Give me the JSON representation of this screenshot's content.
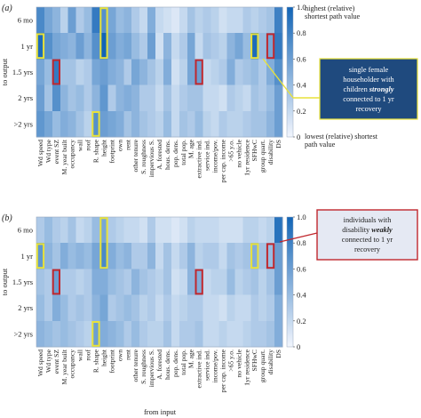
{
  "chart_data": [
    {
      "type": "heatmap",
      "panel_label": "(a)",
      "ylabel": "to output",
      "rows": [
        "6 mo",
        "1 yr",
        "1.5 yrs",
        "2 yrs",
        ">2 yrs"
      ],
      "columns": [
        "Wd speed",
        "Wd type",
        "event SZ",
        "M. year built",
        "occupancy",
        "wall",
        "roof",
        "R. shape",
        "height",
        "footprint",
        "own",
        "rent",
        "other tenure",
        "S. roughness",
        "impervious S.",
        "A. forested",
        "hous. dens.",
        "pop. dens.",
        "total pop.",
        "M. age",
        "extractive ind.",
        "service ind.",
        "income/pov.",
        "per cap. income",
        ">65 y.o.",
        "no vehicle",
        "1yr residence",
        "SFHwC",
        "group quart.",
        "disability",
        "DS"
      ],
      "values": [
        [
          0.75,
          0.55,
          0.45,
          0.25,
          0.6,
          0.3,
          0.4,
          0.85,
          0.7,
          0.55,
          0.4,
          0.45,
          0.3,
          0.2,
          0.5,
          0.2,
          0.15,
          0.1,
          0.2,
          0.35,
          0.25,
          0.3,
          0.25,
          0.15,
          0.2,
          0.2,
          0.3,
          0.25,
          0.3,
          0.35,
          0.8
        ],
        [
          0.95,
          0.7,
          0.55,
          0.5,
          0.45,
          0.6,
          0.45,
          0.7,
          1.0,
          0.6,
          0.5,
          0.55,
          0.4,
          0.3,
          0.6,
          0.15,
          0.45,
          0.2,
          0.3,
          0.55,
          0.2,
          0.35,
          0.3,
          0.25,
          0.45,
          0.55,
          0.4,
          0.95,
          0.4,
          0.55,
          0.85
        ],
        [
          0.55,
          0.4,
          0.85,
          0.35,
          0.35,
          0.25,
          0.3,
          0.55,
          0.6,
          0.5,
          0.45,
          0.3,
          0.55,
          0.45,
          0.35,
          0.25,
          0.5,
          0.15,
          0.25,
          0.55,
          0.6,
          0.2,
          0.25,
          0.3,
          0.5,
          0.3,
          0.35,
          0.4,
          0.3,
          0.5,
          0.7
        ],
        [
          0.6,
          0.35,
          0.7,
          0.45,
          0.35,
          0.4,
          0.3,
          0.45,
          0.65,
          0.3,
          0.45,
          0.5,
          0.45,
          0.3,
          0.3,
          0.2,
          0.35,
          0.2,
          0.3,
          0.35,
          0.35,
          0.2,
          0.2,
          0.15,
          0.3,
          0.25,
          0.2,
          0.35,
          0.3,
          0.4,
          0.6
        ],
        [
          0.65,
          0.55,
          0.4,
          0.5,
          0.45,
          0.35,
          0.25,
          0.7,
          0.6,
          0.55,
          0.5,
          0.35,
          0.45,
          0.35,
          0.3,
          0.25,
          0.4,
          0.2,
          0.35,
          0.3,
          0.4,
          0.25,
          0.2,
          0.3,
          0.25,
          0.25,
          0.3,
          0.35,
          0.35,
          0.45,
          0.6
        ]
      ],
      "highlight_boxes": [
        {
          "color": "#e8e23a",
          "row_start": 0,
          "row_end": 1,
          "col_start": 8,
          "col_end": 8
        },
        {
          "color": "#e8e23a",
          "row_start": 1,
          "row_end": 1,
          "col_start": 0,
          "col_end": 0
        },
        {
          "color": "#e8e23a",
          "row_start": 1,
          "row_end": 1,
          "col_start": 27,
          "col_end": 27
        },
        {
          "color": "#e8e23a",
          "row_start": 4,
          "row_end": 4,
          "col_start": 7,
          "col_end": 7
        },
        {
          "color": "#c0272d",
          "row_start": 1,
          "row_end": 1,
          "col_start": 29,
          "col_end": 29
        },
        {
          "color": "#c0272d",
          "row_start": 2,
          "row_end": 2,
          "col_start": 2,
          "col_end": 2
        },
        {
          "color": "#c0272d",
          "row_start": 2,
          "row_end": 2,
          "col_start": 20,
          "col_end": 20
        }
      ],
      "colorbar": {
        "range": [
          0,
          1.0
        ],
        "ticks": [
          "0",
          "0.2",
          "0.4",
          "0.6",
          "0.8",
          "1.0"
        ],
        "top_label": "highest (relative) shortest path value",
        "bottom_label": "lowest (relative) shortest path value"
      },
      "callout": {
        "text_before": "single female householder with children",
        "emphasis": "strongly",
        "text_after": "connected to 1 yr recovery"
      }
    },
    {
      "type": "heatmap",
      "panel_label": "(b)",
      "ylabel": "to output",
      "xlabel": "from input",
      "rows": [
        "6 mo",
        "1 yr",
        "1.5 yrs",
        "2 yrs",
        ">2 yrs"
      ],
      "columns": [
        "Wd speed",
        "Wd type",
        "event SZ",
        "M. year built",
        "occupancy",
        "wall",
        "roof",
        "R. shape",
        "height",
        "footprint",
        "own",
        "rent",
        "other tenure",
        "S. roughness",
        "impervious S.",
        "A. forested",
        "hous. dens.",
        "pop. dens.",
        "total pop.",
        "M. age",
        "extractive ind.",
        "service ind.",
        "income/pov.",
        "per cap. income",
        ">65 y.o.",
        "no vehicle",
        "1yr residence",
        "SFHwC",
        "group quart.",
        "disability",
        "DS"
      ],
      "values": [
        [
          0.3,
          0.4,
          0.3,
          0.25,
          0.35,
          0.2,
          0.25,
          0.4,
          0.55,
          0.3,
          0.25,
          0.2,
          0.2,
          0.15,
          0.3,
          0.15,
          0.15,
          0.1,
          0.15,
          0.25,
          0.2,
          0.2,
          0.2,
          0.15,
          0.15,
          0.15,
          0.25,
          0.25,
          0.2,
          0.25,
          0.9
        ],
        [
          0.65,
          0.45,
          0.35,
          0.5,
          0.4,
          0.45,
          0.4,
          0.55,
          0.75,
          0.5,
          0.4,
          0.45,
          0.3,
          0.3,
          0.45,
          0.2,
          0.35,
          0.2,
          0.3,
          0.45,
          0.25,
          0.3,
          0.3,
          0.2,
          0.35,
          0.3,
          0.35,
          0.5,
          0.35,
          0.4,
          0.6
        ],
        [
          0.35,
          0.3,
          0.6,
          0.3,
          0.3,
          0.25,
          0.3,
          0.5,
          0.5,
          0.4,
          0.35,
          0.3,
          0.45,
          0.35,
          0.3,
          0.25,
          0.35,
          0.15,
          0.2,
          0.45,
          0.5,
          0.2,
          0.25,
          0.25,
          0.4,
          0.25,
          0.3,
          0.35,
          0.25,
          0.35,
          0.6
        ],
        [
          0.4,
          0.3,
          0.5,
          0.4,
          0.3,
          0.35,
          0.3,
          0.45,
          0.55,
          0.3,
          0.35,
          0.4,
          0.35,
          0.25,
          0.3,
          0.2,
          0.3,
          0.2,
          0.25,
          0.3,
          0.3,
          0.2,
          0.2,
          0.15,
          0.25,
          0.2,
          0.2,
          0.3,
          0.25,
          0.3,
          0.5
        ],
        [
          0.45,
          0.4,
          0.35,
          0.4,
          0.35,
          0.3,
          0.25,
          0.6,
          0.5,
          0.45,
          0.4,
          0.3,
          0.4,
          0.3,
          0.25,
          0.25,
          0.35,
          0.2,
          0.3,
          0.3,
          0.35,
          0.2,
          0.2,
          0.25,
          0.2,
          0.2,
          0.25,
          0.3,
          0.3,
          0.35,
          0.5
        ]
      ],
      "highlight_boxes": [
        {
          "color": "#e8e23a",
          "row_start": 0,
          "row_end": 1,
          "col_start": 8,
          "col_end": 8
        },
        {
          "color": "#e8e23a",
          "row_start": 1,
          "row_end": 1,
          "col_start": 0,
          "col_end": 0
        },
        {
          "color": "#e8e23a",
          "row_start": 1,
          "row_end": 1,
          "col_start": 27,
          "col_end": 27
        },
        {
          "color": "#e8e23a",
          "row_start": 4,
          "row_end": 4,
          "col_start": 7,
          "col_end": 7
        },
        {
          "color": "#c0272d",
          "row_start": 1,
          "row_end": 1,
          "col_start": 29,
          "col_end": 29
        },
        {
          "color": "#c0272d",
          "row_start": 2,
          "row_end": 2,
          "col_start": 2,
          "col_end": 2
        },
        {
          "color": "#c0272d",
          "row_start": 2,
          "row_end": 2,
          "col_start": 20,
          "col_end": 20
        }
      ],
      "colorbar": {
        "range": [
          0,
          1.0
        ],
        "ticks": [
          "0",
          "0.2",
          "0.4",
          "0.6",
          "0.8",
          "1.0"
        ]
      },
      "callout": {
        "text_before": "individuals with disability",
        "emphasis": "weakly",
        "text_after": "connected to 1 yr recovery"
      }
    }
  ],
  "colors": {
    "low": "#f2f6fd",
    "high": "#1264b6",
    "yellow_box": "#e8e23a",
    "red_box": "#c0272d",
    "callout_a_fill": "#1f4a7e",
    "callout_b_fill": "#e5e9f3"
  }
}
